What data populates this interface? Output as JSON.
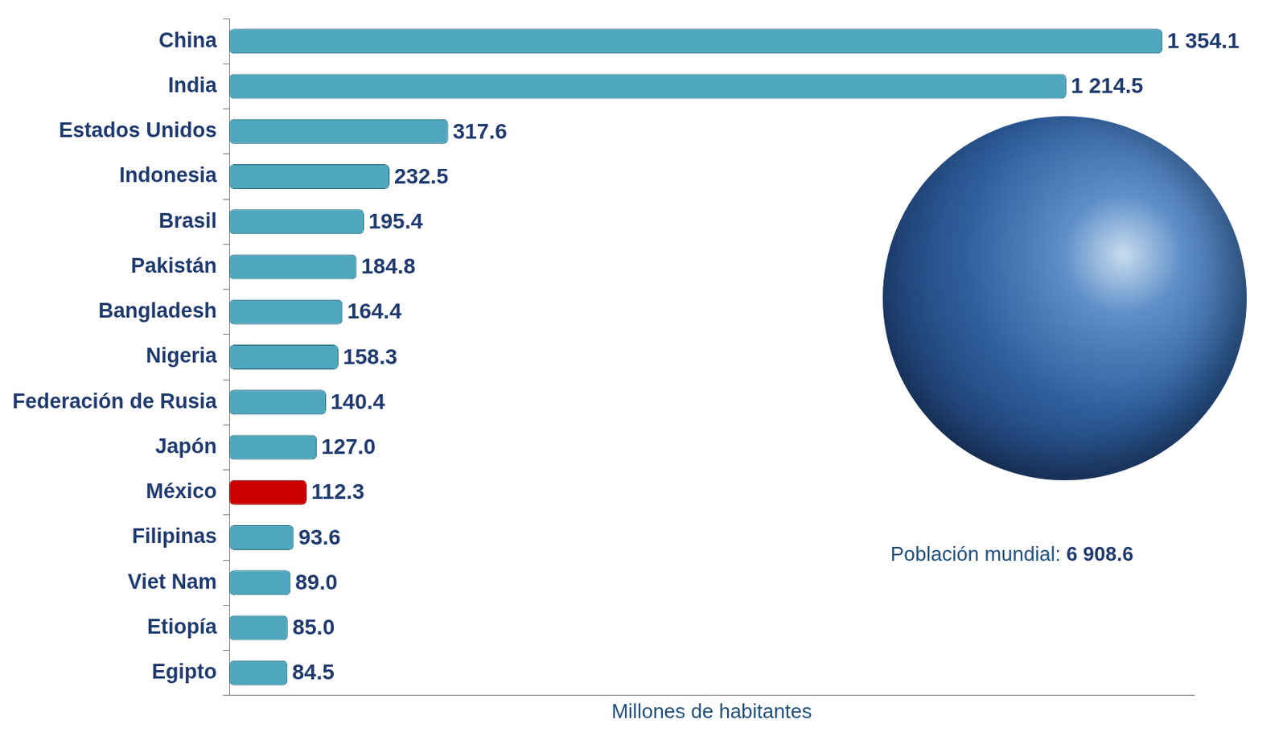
{
  "chart_data": {
    "type": "bar",
    "orientation": "horizontal",
    "categories": [
      "China",
      "India",
      "Estados Unidos",
      "Indonesia",
      "Brasil",
      "Pakistán",
      "Bangladesh",
      "Nigeria",
      "Federación de Rusia",
      "Japón",
      "México",
      "Filipinas",
      "Viet Nam",
      "Etiopía",
      "Egipto"
    ],
    "values": [
      1354.1,
      1214.5,
      317.6,
      232.5,
      195.4,
      184.8,
      164.4,
      158.3,
      140.4,
      127.0,
      112.3,
      93.6,
      89.0,
      85.0,
      84.5
    ],
    "value_labels": [
      "1 354.1",
      "1 214.5",
      "317.6",
      "232.5",
      "195.4",
      "184.8",
      "164.4",
      "158.3",
      "140.4",
      "127.0",
      "112.3",
      "93.6",
      "89.0",
      "85.0",
      "84.5"
    ],
    "colors": [
      "#4fa7bd",
      "#4fa7bd",
      "#4fa7bd",
      "#4fa7bd",
      "#4fa7bd",
      "#4fa7bd",
      "#4fa7bd",
      "#4fa7bd",
      "#4fa7bd",
      "#4fa7bd",
      "#cc0000",
      "#4fa7bd",
      "#4fa7bd",
      "#4fa7bd",
      "#4fa7bd"
    ],
    "xlim": [
      0,
      1400
    ],
    "xlabel": "Millones de habitantes",
    "annotation": "Población mundial: 6 908.6",
    "data_labels": true,
    "tick_labels": "y",
    "grid": false
  }
}
